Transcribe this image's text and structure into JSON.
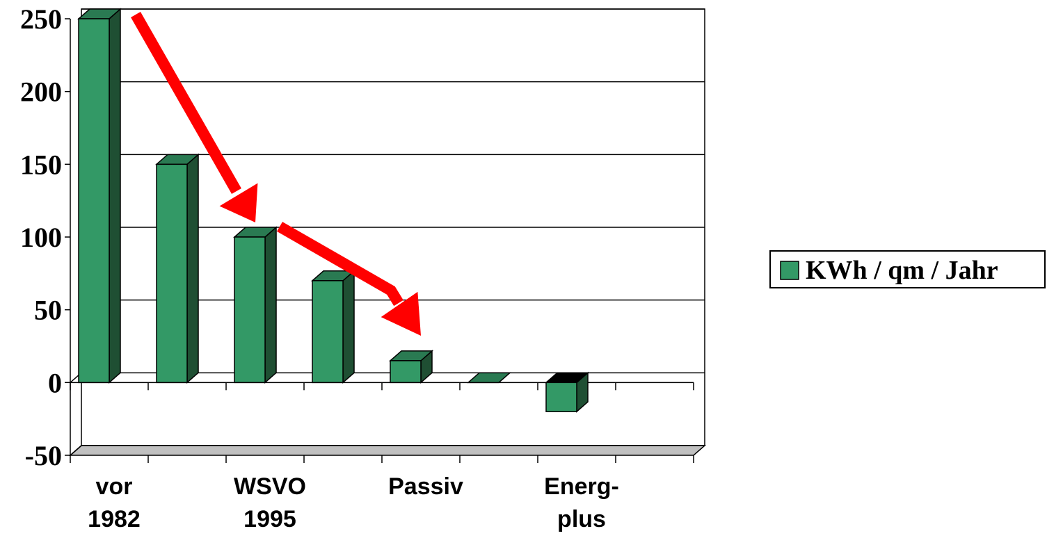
{
  "chart_data": {
    "type": "bar",
    "style": "3d",
    "categories": [
      "vor 1982",
      "",
      "WSVO 1995",
      "",
      "Passiv",
      "",
      "Energ- plus",
      ""
    ],
    "x_tick_labels": [
      {
        "category_index": 0,
        "lines": [
          "vor",
          "1982"
        ]
      },
      {
        "category_index": 2,
        "lines": [
          "WSVO",
          "1995"
        ]
      },
      {
        "category_index": 4,
        "lines": [
          "Passiv"
        ]
      },
      {
        "category_index": 6,
        "lines": [
          "Energ-",
          "plus"
        ]
      }
    ],
    "series": [
      {
        "name": "KWh / qm / Jahr",
        "values": [
          250,
          150,
          100,
          70,
          15,
          0,
          -20,
          null
        ]
      }
    ],
    "ylim": [
      -50,
      250
    ],
    "yticks": [
      250,
      200,
      150,
      100,
      50,
      0,
      -50
    ],
    "ytick_labels": [
      "250",
      "200",
      "150",
      "100",
      "50",
      "0",
      "-50"
    ],
    "grid": true,
    "legend_position": "right",
    "title": "",
    "xlabel": "",
    "ylabel": "",
    "colors": {
      "bar_front": "#339966",
      "bar_top": "#2a7a52",
      "bar_side": "#1f4f33",
      "arrow": "#ff0000",
      "floor": "#c0c0c0"
    }
  }
}
